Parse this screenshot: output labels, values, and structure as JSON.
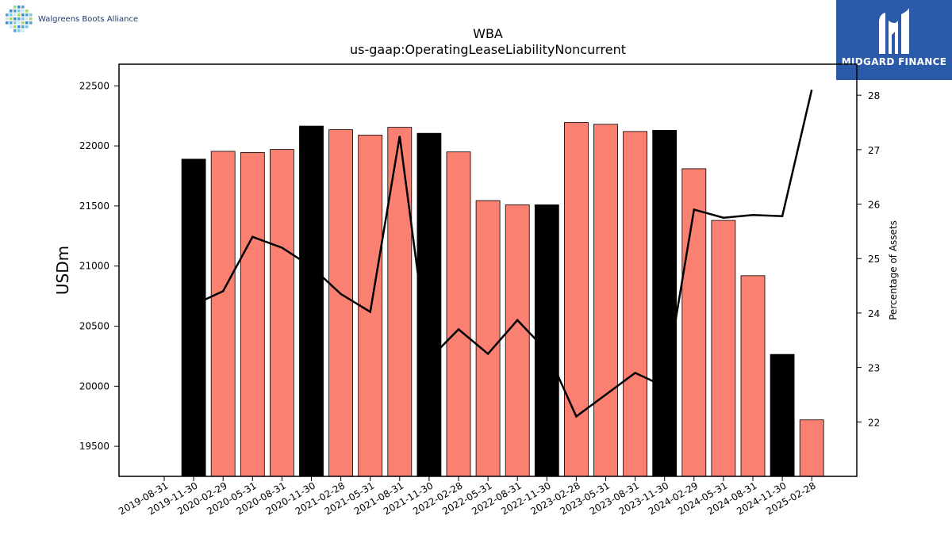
{
  "company_logo": {
    "text": "Walgreens Boots Alliance",
    "icon": "walgreens-dot-grid-icon"
  },
  "brand": {
    "text": "MIDGARD FINANCE",
    "icon": "midgard-logo-icon",
    "color": "#2b5aa8"
  },
  "chart_data": {
    "type": "bar",
    "title": "WBA",
    "subtitle": "us-gaap:OperatingLeaseLiabilityNoncurrent",
    "ylabel": "USDm",
    "ylabel_right": "Percentage of Assets",
    "categories": [
      "2019-08-31",
      "2019-11-30",
      "2020-02-29",
      "2020-05-31",
      "2020-08-31",
      "2020-11-30",
      "2021-02-28",
      "2021-05-31",
      "2021-08-31",
      "2021-11-30",
      "2022-02-28",
      "2022-05-31",
      "2022-08-31",
      "2022-11-30",
      "2023-02-28",
      "2023-05-31",
      "2023-08-31",
      "2023-11-30",
      "2024-02-29",
      "2024-05-31",
      "2024-08-31",
      "2024-11-30",
      "2025-02-28"
    ],
    "values": [
      null,
      21890,
      21955,
      21945,
      21970,
      22165,
      22135,
      22090,
      22155,
      22105,
      21950,
      21545,
      21510,
      21510,
      22195,
      22180,
      22120,
      22130,
      21810,
      21380,
      20920,
      20265,
      19720
    ],
    "bar_colors": [
      "#fa8072",
      "#000000",
      "#fa8072",
      "#fa8072",
      "#fa8072",
      "#000000",
      "#fa8072",
      "#fa8072",
      "#fa8072",
      "#000000",
      "#fa8072",
      "#fa8072",
      "#fa8072",
      "#000000",
      "#fa8072",
      "#fa8072",
      "#fa8072",
      "#000000",
      "#fa8072",
      "#fa8072",
      "#fa8072",
      "#000000",
      "#fa8072"
    ],
    "line_series": {
      "values": [
        null,
        24.15,
        24.4,
        25.4,
        25.2,
        24.85,
        24.35,
        24.02,
        27.25,
        23.15,
        23.7,
        23.25,
        23.87,
        23.3,
        22.1,
        22.5,
        22.9,
        22.65,
        25.9,
        25.75,
        25.8,
        25.78,
        28.1
      ]
    },
    "ylim": [
      19250,
      22680
    ],
    "ylim_right": [
      21.0,
      28.57
    ],
    "yticks": [
      19500,
      20000,
      20500,
      21000,
      21500,
      22000,
      22500
    ],
    "yticks_right": [
      22,
      23,
      24,
      25,
      26,
      27,
      28
    ],
    "colors": {
      "bar_primary": "#fa8072",
      "bar_highlight": "#000000",
      "line": "#000000"
    },
    "grid": false
  }
}
